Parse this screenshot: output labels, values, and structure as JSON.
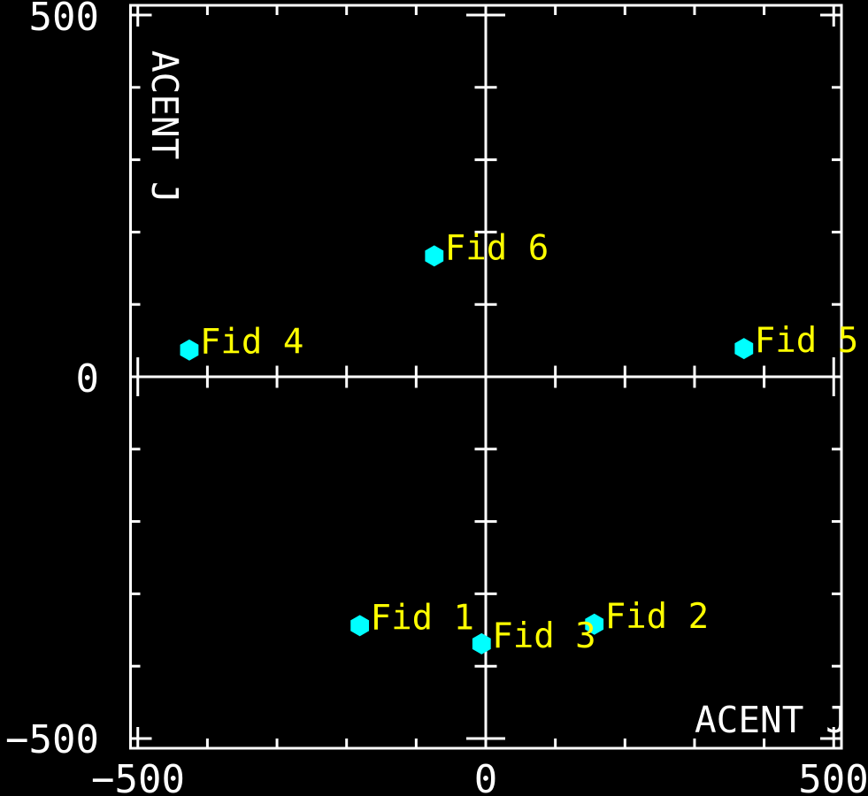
{
  "window": {
    "background": "#000000"
  },
  "chart_data": {
    "type": "scatter",
    "title": "",
    "xlabel": "ACENT J",
    "ylabel": "ACENT J",
    "xlim": [
      -500,
      500
    ],
    "ylim": [
      -500,
      500
    ],
    "x_tick_values": [
      -500,
      0,
      500
    ],
    "y_tick_values": [
      500,
      0,
      -500
    ],
    "x_tick_labels": [
      "−500",
      "0",
      "500"
    ],
    "y_tick_labels": [
      "500",
      "0",
      "−500"
    ],
    "minor_tick_step": 100,
    "axes_style": "black background, white box frame with inward ticks, white axis lines crossing at origin with centered ticks",
    "grid": "off",
    "legend": "none",
    "marker": "filled-hexagon",
    "colors": {
      "background": "#000000",
      "axis": "#ffffff",
      "marker": "#00ffff",
      "point_label": "#ffff00"
    },
    "points": [
      {
        "label": "Fid 1",
        "x": -181,
        "y": -344
      },
      {
        "label": "Fid 2",
        "x": 156,
        "y": -342
      },
      {
        "label": "Fid 3",
        "x": -6,
        "y": -369
      },
      {
        "label": "Fid 4",
        "x": -426,
        "y": 37
      },
      {
        "label": "Fid 5",
        "x": 371,
        "y": 39
      },
      {
        "label": "Fid 6",
        "x": -74,
        "y": 167
      }
    ]
  }
}
